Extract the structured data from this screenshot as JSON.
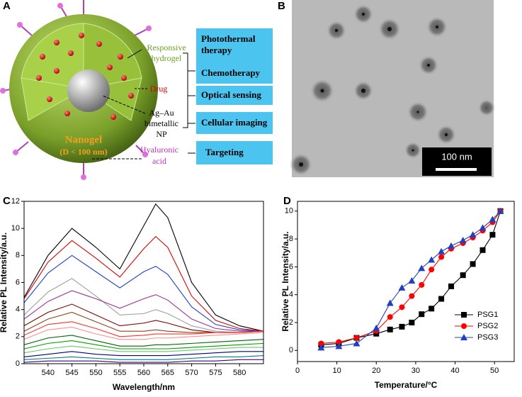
{
  "panel_labels": [
    "A",
    "B",
    "C",
    "D"
  ],
  "diagram": {
    "responsive_hydrogel": [
      "Responsive",
      "hydrogel"
    ],
    "drug": "Drug",
    "ag_au_np": [
      "Ag–Au",
      "bimetallic",
      "NP"
    ],
    "nanogel": [
      "Nanogel",
      "(D < 100 nm)"
    ],
    "hyaluronic_acid": [
      "Hyaluronic",
      "acid"
    ],
    "applications": [
      [
        "Photothermal",
        "therapy"
      ],
      [
        "Chemotherapy"
      ],
      [
        "Optical sensing"
      ],
      [
        "Cellular imaging"
      ],
      [
        "Targeting"
      ]
    ]
  },
  "image": {
    "scale_bar": "100 nm"
  },
  "chart_data": [
    {
      "type": "line",
      "xlabel": "Wavelength/nm",
      "ylabel": "Relative PL Intensity/a.u.",
      "x": [
        535,
        540,
        545,
        550,
        555,
        560,
        562.5,
        565,
        570,
        575,
        580,
        585
      ],
      "xlim": [
        535,
        585
      ],
      "xticks": [
        540,
        545,
        550,
        555,
        560,
        565,
        570,
        575,
        580
      ],
      "ylim": [
        0,
        12
      ],
      "yticks": [
        0,
        2,
        4,
        6,
        8,
        10,
        12
      ],
      "series": [
        {
          "color": "#000000",
          "values": [
            4.9,
            8.0,
            10.0,
            8.6,
            7.0,
            10.2,
            11.8,
            10.8,
            6.0,
            3.6,
            2.8,
            2.4
          ]
        },
        {
          "color": "#e00000",
          "values": [
            4.8,
            7.5,
            9.1,
            7.8,
            6.4,
            8.5,
            9.4,
            8.6,
            5.0,
            3.2,
            2.6,
            2.4
          ]
        },
        {
          "color": "#2040c0",
          "values": [
            4.5,
            6.7,
            8.0,
            6.8,
            5.6,
            6.8,
            7.2,
            6.6,
            4.2,
            2.9,
            2.5,
            2.4
          ]
        },
        {
          "color": "#a0a0a0",
          "values": [
            3.6,
            5.3,
            6.3,
            5.0,
            3.6,
            3.7,
            4.0,
            3.7,
            2.8,
            2.4,
            2.3,
            2.4
          ]
        },
        {
          "color": "#993399",
          "values": [
            3.3,
            4.6,
            5.4,
            4.8,
            4.1,
            4.8,
            5.1,
            4.7,
            3.3,
            2.6,
            2.4,
            2.4
          ]
        },
        {
          "color": "#800000",
          "values": [
            2.8,
            3.8,
            4.4,
            3.6,
            2.8,
            3.0,
            3.2,
            3.0,
            2.5,
            2.3,
            2.3,
            2.4
          ]
        },
        {
          "color": "#8b4513",
          "values": [
            2.4,
            3.3,
            3.8,
            3.1,
            2.4,
            2.4,
            2.5,
            2.4,
            2.3,
            2.3,
            2.3,
            2.4
          ]
        },
        {
          "color": "#ff3030",
          "values": [
            2.1,
            2.9,
            3.1,
            2.6,
            2.0,
            2.1,
            2.2,
            2.2,
            2.2,
            2.3,
            2.3,
            2.4
          ]
        },
        {
          "color": "#ff9090",
          "values": [
            1.8,
            2.5,
            2.7,
            2.2,
            1.8,
            1.8,
            1.9,
            1.9,
            2.0,
            2.1,
            2.2,
            2.3
          ]
        },
        {
          "color": "#006400",
          "values": [
            1.4,
            1.9,
            2.1,
            1.7,
            1.3,
            1.3,
            1.4,
            1.4,
            1.5,
            1.6,
            1.7,
            1.8
          ]
        },
        {
          "color": "#00a000",
          "values": [
            1.1,
            1.5,
            1.7,
            1.4,
            1.1,
            1.1,
            1.1,
            1.1,
            1.2,
            1.3,
            1.4,
            1.5
          ]
        },
        {
          "color": "#66cc66",
          "values": [
            0.8,
            1.1,
            1.3,
            1.1,
            0.9,
            0.9,
            0.9,
            0.9,
            1.0,
            1.1,
            1.2,
            1.2
          ]
        },
        {
          "color": "#000080",
          "values": [
            0.5,
            0.7,
            0.9,
            0.7,
            0.6,
            0.6,
            0.6,
            0.6,
            0.7,
            0.8,
            0.9,
            0.9
          ]
        },
        {
          "color": "#008080",
          "values": [
            0.3,
            0.4,
            0.5,
            0.4,
            0.3,
            0.3,
            0.3,
            0.3,
            0.4,
            0.5,
            0.5,
            0.6
          ]
        },
        {
          "color": "#400080",
          "values": [
            0.1,
            0.2,
            0.2,
            0.2,
            0.1,
            0.1,
            0.1,
            0.1,
            0.2,
            0.2,
            0.3,
            0.3
          ]
        }
      ]
    },
    {
      "type": "line",
      "xlabel": "Temperature/°C",
      "ylabel": "Relative PL Intensity/a.u.",
      "x": [
        6,
        10.5,
        15,
        20,
        23.5,
        26.5,
        29,
        31.5,
        34,
        36.5,
        39,
        42,
        44.5,
        47,
        49.5,
        51.5
      ],
      "xlim": [
        0,
        55
      ],
      "xticks": [
        0,
        10,
        20,
        30,
        40,
        50
      ],
      "ylim": [
        -0.8,
        10.7
      ],
      "yticks": [
        0,
        2,
        4,
        6,
        8,
        10
      ],
      "legend": "lower right",
      "series": [
        {
          "name": "PSG1",
          "color": "#000000",
          "marker": "square",
          "values": [
            0.4,
            0.5,
            0.9,
            1.2,
            1.5,
            1.7,
            2.0,
            2.6,
            3.0,
            3.7,
            4.6,
            5.4,
            6.2,
            7.2,
            8.3,
            10.0
          ]
        },
        {
          "name": "PSG2",
          "color": "#ff0000",
          "marker": "circle",
          "values": [
            0.5,
            0.6,
            0.9,
            1.4,
            2.4,
            3.1,
            3.9,
            4.7,
            5.8,
            6.7,
            7.3,
            7.7,
            8.1,
            8.6,
            9.2,
            10.0
          ]
        },
        {
          "name": "PSG3",
          "color": "#2040c0",
          "marker": "triangle",
          "values": [
            0.2,
            0.3,
            0.5,
            1.6,
            3.4,
            4.5,
            5.0,
            5.9,
            6.5,
            7.1,
            7.5,
            7.9,
            8.3,
            8.8,
            9.4,
            10.0
          ]
        }
      ]
    }
  ]
}
